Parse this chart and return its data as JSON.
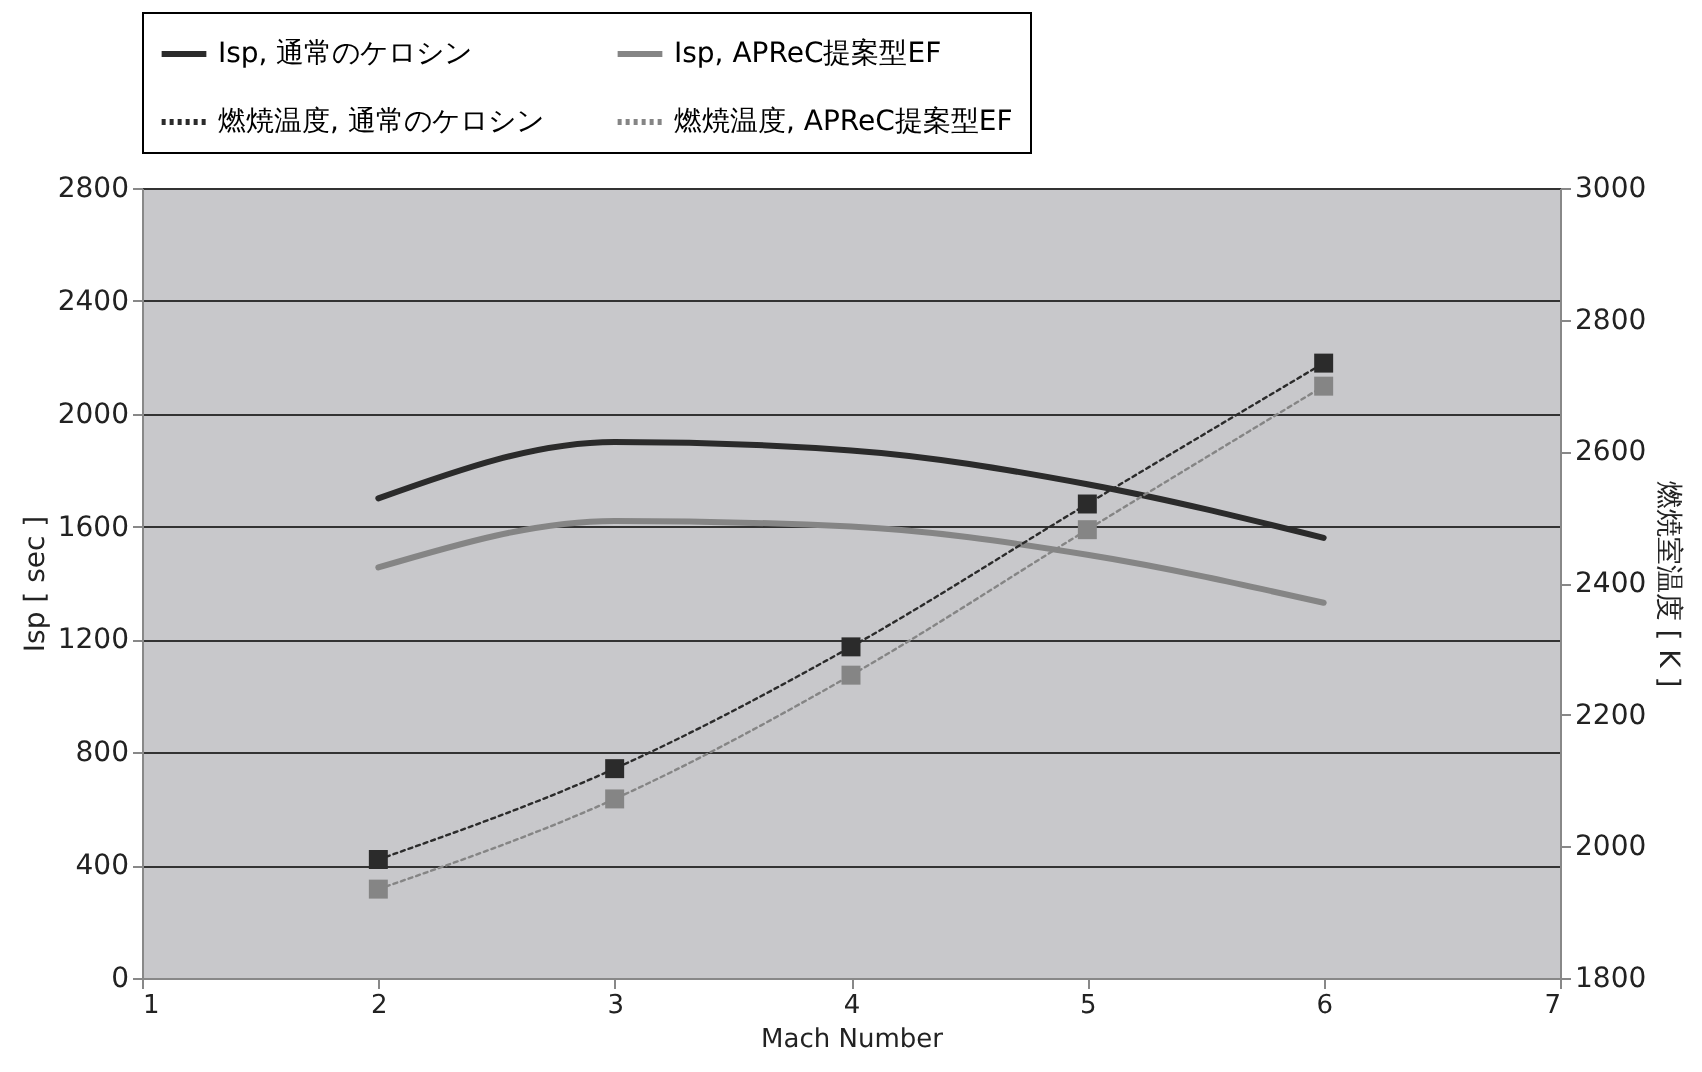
{
  "chart_data": {
    "type": "line",
    "xlabel": "Mach Number",
    "ylabel": "Isp [ sec ]",
    "y2label": "燃焼室温度 [ K ]",
    "x": [
      2,
      3,
      4,
      5,
      6
    ],
    "series": [
      {
        "name": "Isp, 通常のケロシン",
        "color": "#2b2b2b",
        "values": [
          1700,
          1900,
          1870,
          1750,
          1560
        ],
        "line_style": "solid"
      },
      {
        "name": "Isp, APReC提案型EF",
        "color": "#858585",
        "values": [
          1455,
          1620,
          1600,
          1500,
          1330
        ],
        "line_style": "solid"
      },
      {
        "name": "燃焼温度, 通常のケロシン",
        "color": "#2b2b2b",
        "values": [
          1980,
          2118,
          2303,
          2520,
          2734
        ],
        "axis": "y2",
        "marker": "square",
        "line_style": "dotted"
      },
      {
        "name": "燃焼温度, APReC提案型EF",
        "color": "#858585",
        "values": [
          1935,
          2072,
          2260,
          2481,
          2699
        ],
        "axis": "y2",
        "marker": "square",
        "line_style": "dotted"
      }
    ],
    "xlim": [
      1,
      7
    ],
    "xticks": [
      1,
      2,
      3,
      4,
      5,
      6,
      7
    ],
    "ylim": [
      0,
      2800
    ],
    "yticks": [
      0,
      400,
      800,
      1200,
      1600,
      2000,
      2400,
      2800
    ],
    "y2lim": [
      1800,
      3000
    ],
    "y2ticks": [
      1800,
      2000,
      2200,
      2400,
      2600,
      2800,
      3000
    ],
    "grid": "y",
    "legend": "top"
  }
}
